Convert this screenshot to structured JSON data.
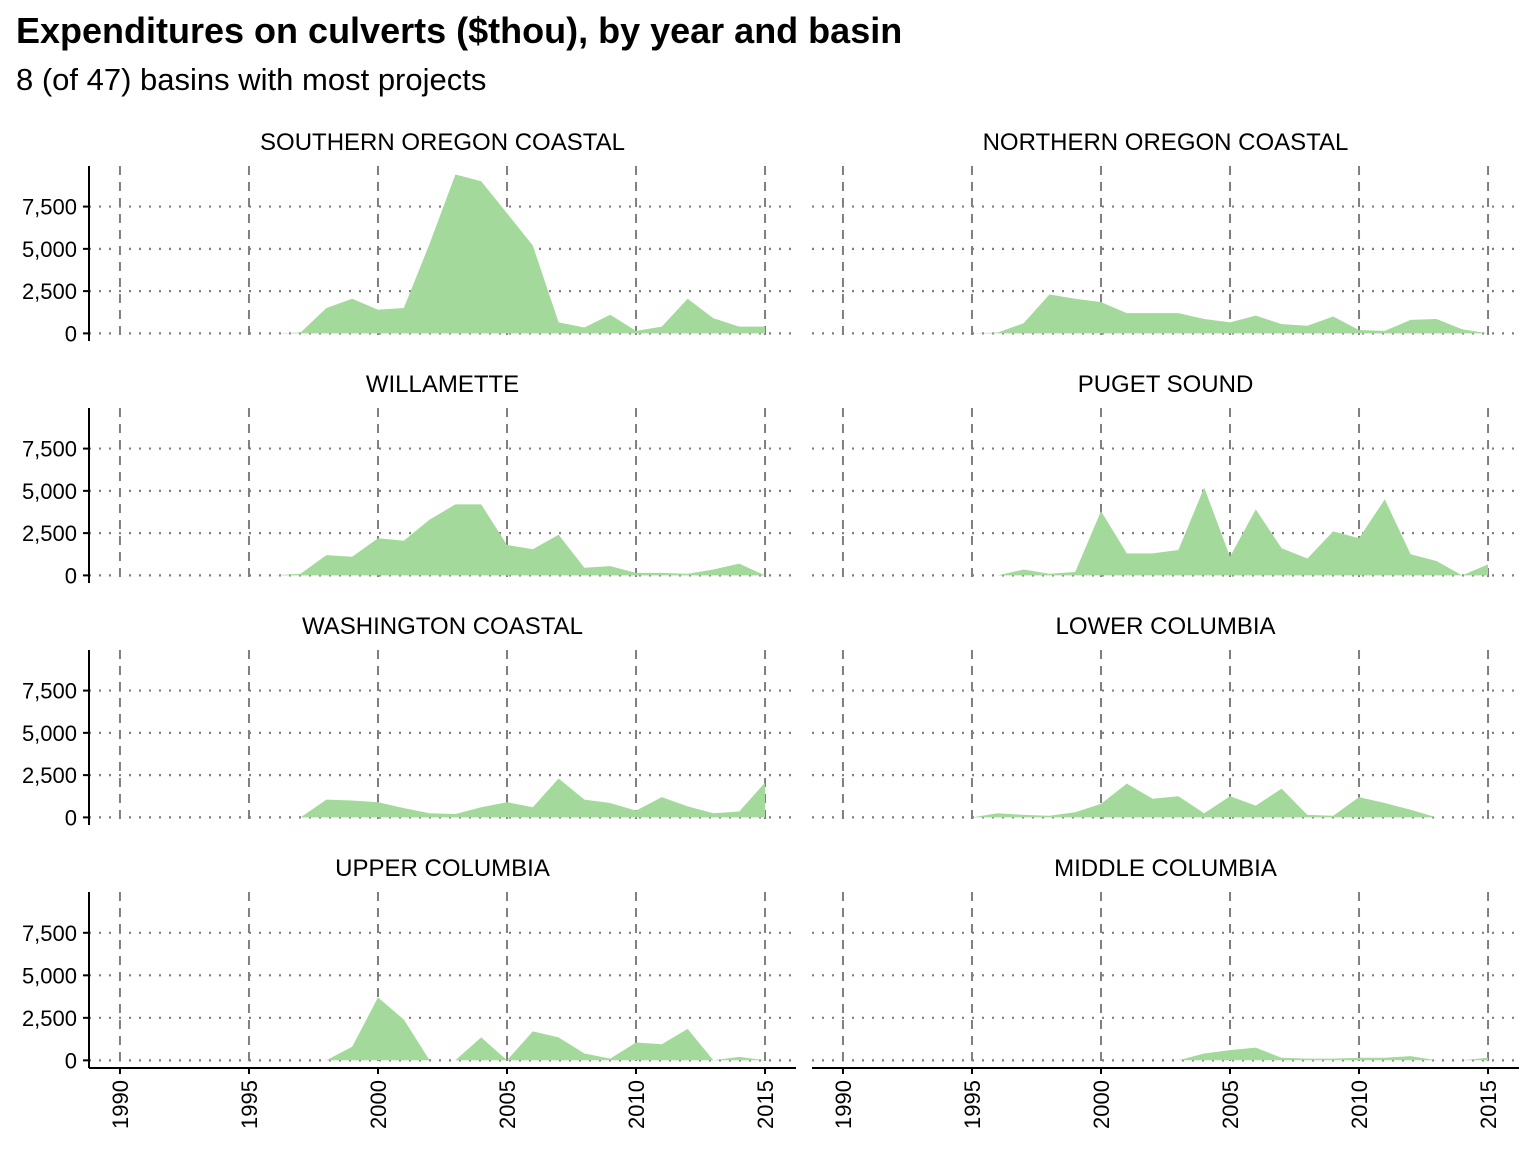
{
  "colors": {
    "fill": "#a3d99b",
    "grid": "#7f7f7f",
    "axis": "#000000",
    "background": "#ffffff"
  },
  "chart_data": {
    "type": "area",
    "title": "Expenditures on culverts ($thou), by year and basin",
    "subtitle": "8 (of 47) basins with most projects",
    "xlabel": "",
    "ylabel": "",
    "xlim": [
      1988.8,
      2016.2
    ],
    "ylim": [
      -450,
      9900
    ],
    "x_ticks": [
      1990,
      1995,
      2000,
      2005,
      2010,
      2015
    ],
    "x_tick_labels": [
      "1990",
      "1995",
      "2000",
      "2005",
      "2010",
      "2015"
    ],
    "y_ticks": [
      0,
      2500,
      5000,
      7500
    ],
    "y_tick_labels": [
      "0",
      "2,500",
      "5,000",
      "7,500"
    ],
    "grid": {
      "x": "dashed",
      "y": "dotted"
    },
    "facet_layout": "4 rows x 2 columns",
    "panels": [
      {
        "name": "SOUTHERN OREGON COASTAL",
        "x": [
          1996,
          1997,
          1998,
          1999,
          2000,
          2001,
          2002,
          2003,
          2004,
          2005,
          2006,
          2007,
          2008,
          2009,
          2010,
          2011,
          2012,
          2013,
          2014,
          2015
        ],
        "values": [
          0,
          50,
          1500,
          2050,
          1400,
          1500,
          5300,
          9400,
          9000,
          7100,
          5200,
          650,
          350,
          1100,
          150,
          400,
          2050,
          900,
          400,
          400
        ]
      },
      {
        "name": "NORTHERN OREGON COASTAL",
        "x": [
          1995,
          1996,
          1997,
          1998,
          1999,
          2000,
          2001,
          2002,
          2003,
          2004,
          2005,
          2006,
          2007,
          2008,
          2009,
          2010,
          2011,
          2012,
          2013,
          2014,
          2015
        ],
        "values": [
          0,
          50,
          600,
          2300,
          2050,
          1850,
          1200,
          1200,
          1200,
          850,
          650,
          1050,
          550,
          450,
          1000,
          200,
          150,
          800,
          850,
          250,
          0
        ]
      },
      {
        "name": "WILLAMETTE",
        "x": [
          1996,
          1997,
          1998,
          1999,
          2000,
          2001,
          2002,
          2003,
          2004,
          2005,
          2006,
          2007,
          2008,
          2009,
          2010,
          2011,
          2012,
          2013,
          2014,
          2015
        ],
        "values": [
          0,
          100,
          1200,
          1100,
          2200,
          2050,
          3300,
          4200,
          4200,
          1800,
          1550,
          2400,
          450,
          550,
          150,
          150,
          100,
          350,
          700,
          0
        ]
      },
      {
        "name": "PUGET SOUND",
        "x": [
          1996,
          1997,
          1998,
          1999,
          2000,
          2001,
          2002,
          2003,
          2004,
          2005,
          2006,
          2007,
          2008,
          2009,
          2010,
          2011,
          2012,
          2013,
          2014,
          2015
        ],
        "values": [
          0,
          350,
          100,
          200,
          3800,
          1300,
          1300,
          1500,
          5200,
          1100,
          3900,
          1600,
          1000,
          2600,
          2200,
          4500,
          1250,
          850,
          0,
          650
        ]
      },
      {
        "name": "WASHINGTON COASTAL",
        "x": [
          1997,
          1998,
          1999,
          2000,
          2001,
          2002,
          2003,
          2004,
          2005,
          2006,
          2007,
          2008,
          2009,
          2010,
          2011,
          2012,
          2013,
          2014,
          2015
        ],
        "values": [
          0,
          1050,
          1000,
          900,
          550,
          250,
          200,
          600,
          900,
          600,
          2300,
          1050,
          850,
          400,
          1200,
          650,
          250,
          350,
          2050
        ]
      },
      {
        "name": "LOWER COLUMBIA",
        "x": [
          1995,
          1996,
          1997,
          1998,
          1999,
          2000,
          2001,
          2002,
          2003,
          2004,
          2005,
          2006,
          2007,
          2008,
          2009,
          2010,
          2011,
          2012,
          2013
        ],
        "values": [
          0,
          250,
          150,
          100,
          300,
          800,
          2000,
          1100,
          1250,
          250,
          1250,
          700,
          1700,
          150,
          100,
          1200,
          850,
          450,
          0
        ]
      },
      {
        "name": "UPPER COLUMBIA",
        "x": [
          1998,
          1999,
          2000,
          2001,
          2002,
          2003,
          2004,
          2005,
          2006,
          2007,
          2008,
          2009,
          2010,
          2011,
          2012,
          2013,
          2014,
          2015
        ],
        "values": [
          0,
          800,
          3700,
          2400,
          0,
          0,
          1350,
          0,
          1700,
          1350,
          400,
          100,
          1050,
          950,
          1850,
          0,
          200,
          0
        ]
      },
      {
        "name": "MIDDLE COLUMBIA",
        "x": [
          2003,
          2004,
          2005,
          2006,
          2007,
          2008,
          2009,
          2010,
          2011,
          2012,
          2013,
          2014,
          2015
        ],
        "values": [
          0,
          400,
          600,
          750,
          150,
          100,
          100,
          150,
          150,
          250,
          0,
          0,
          150
        ]
      }
    ]
  }
}
